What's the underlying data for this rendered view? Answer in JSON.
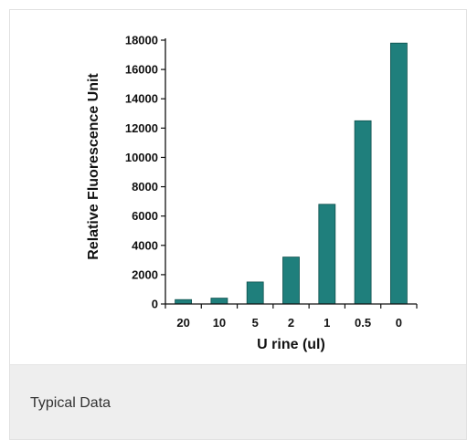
{
  "chart_data": {
    "type": "bar",
    "categories": [
      "20",
      "10",
      "5",
      "2",
      "1",
      "0.5",
      "0"
    ],
    "values": [
      300,
      400,
      1500,
      3200,
      6800,
      12500,
      17800
    ],
    "xlabel": "U rine (ul)",
    "ylabel": "Relative Fluorescence Unit",
    "ylim": [
      0,
      18000
    ],
    "yticks": [
      0,
      2000,
      4000,
      6000,
      8000,
      10000,
      12000,
      14000,
      16000,
      18000
    ],
    "bar_color": "#1f7f7c",
    "grid": false,
    "legend": "none"
  },
  "caption": {
    "text": "Typical Data"
  }
}
